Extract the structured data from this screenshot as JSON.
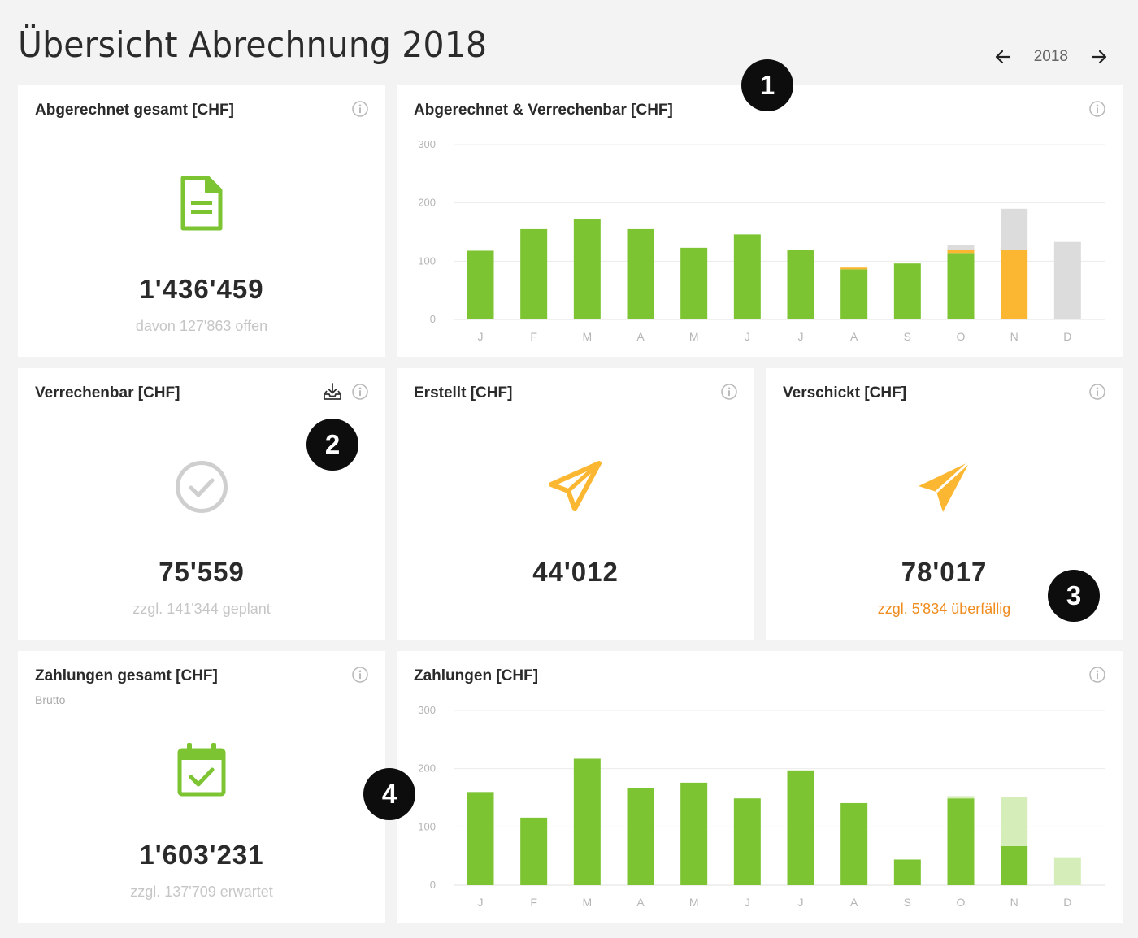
{
  "header": {
    "title": "Übersicht Abrechnung 2018",
    "year": "2018",
    "prev_icon": "arrow-left-icon",
    "next_icon": "arrow-right-icon"
  },
  "colors": {
    "green": "#7dc433",
    "light_green": "#d4edb9",
    "orange": "#fbb731",
    "grey": "#dcdcdc",
    "overdue": "#f08c1e"
  },
  "cards": {
    "abgerechnet": {
      "title": "Abgerechnet gesamt [CHF]",
      "icon": "document-icon",
      "value": "1'436'459",
      "note": "davon 127'863 offen"
    },
    "verrechenbar": {
      "title": "Verrechenbar [CHF]",
      "icon": "check-circle-icon",
      "value": "75'559",
      "note": "zzgl. 141'344 geplant"
    },
    "erstellt": {
      "title": "Erstellt [CHF]",
      "icon": "paper-plane-outline-icon",
      "value": "44'012"
    },
    "verschickt": {
      "title": "Verschickt [CHF]",
      "icon": "paper-plane-filled-icon",
      "value": "78'017",
      "note": "zzgl. 5'834 überfällig"
    },
    "zahlungen_gesamt": {
      "title": "Zahlungen gesamt [CHF]",
      "subtitle": "Brutto",
      "icon": "calendar-check-icon",
      "value": "1'603'231",
      "note": "zzgl. 137'709 erwartet"
    }
  },
  "badges": [
    "1",
    "2",
    "3",
    "4"
  ],
  "chart_data": [
    {
      "type": "bar",
      "title": "Abgerechnet & Verrechenbar [CHF]",
      "categories": [
        "J",
        "F",
        "M",
        "A",
        "M",
        "J",
        "J",
        "A",
        "S",
        "O",
        "N",
        "D"
      ],
      "yticks": [
        "0",
        "100",
        "200",
        "300"
      ],
      "ylim": [
        0,
        300
      ],
      "stacked": true,
      "series": [
        {
          "color": "#7dc433",
          "values": [
            118,
            155,
            172,
            155,
            123,
            146,
            120,
            86,
            96,
            114,
            0,
            0
          ]
        },
        {
          "color": "#fbb731",
          "values": [
            0,
            0,
            0,
            0,
            0,
            0,
            0,
            3,
            0,
            5,
            120,
            0
          ]
        },
        {
          "color": "#dcdcdc",
          "values": [
            0,
            0,
            0,
            0,
            0,
            0,
            0,
            0,
            0,
            8,
            70,
            133
          ]
        }
      ],
      "grid": true
    },
    {
      "type": "bar",
      "title": "Zahlungen [CHF]",
      "categories": [
        "J",
        "F",
        "M",
        "A",
        "M",
        "J",
        "J",
        "A",
        "S",
        "O",
        "N",
        "D"
      ],
      "yticks": [
        "0",
        "100",
        "200",
        "300"
      ],
      "ylim": [
        0,
        300
      ],
      "stacked": true,
      "series": [
        {
          "color": "#7dc433",
          "values": [
            160,
            116,
            217,
            167,
            176,
            149,
            197,
            141,
            44,
            149,
            67,
            0
          ]
        },
        {
          "color": "#d4edb9",
          "values": [
            0,
            0,
            0,
            0,
            0,
            0,
            0,
            0,
            0,
            4,
            84,
            48
          ]
        }
      ],
      "grid": true
    }
  ]
}
